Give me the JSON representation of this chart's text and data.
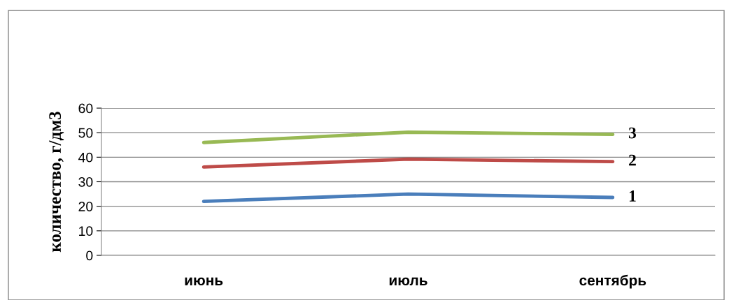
{
  "chart_data": {
    "type": "line",
    "ylabel": "количество, г/дм3",
    "categories": [
      "июнь",
      "июль",
      "сентябрь"
    ],
    "series": [
      {
        "name": "1",
        "color": "#4a7ebb",
        "values": [
          22,
          25,
          23.6
        ]
      },
      {
        "name": "2",
        "color": "#be4b48",
        "values": [
          36,
          39.2,
          38.2
        ]
      },
      {
        "name": "3",
        "color": "#98b954",
        "values": [
          46,
          50.2,
          49.3
        ]
      }
    ],
    "ylim": [
      0,
      60
    ],
    "yticks": [
      0,
      10,
      20,
      30,
      40,
      50,
      60
    ],
    "grid": "y",
    "legend": false,
    "marker": "none",
    "line_style": "solid"
  }
}
